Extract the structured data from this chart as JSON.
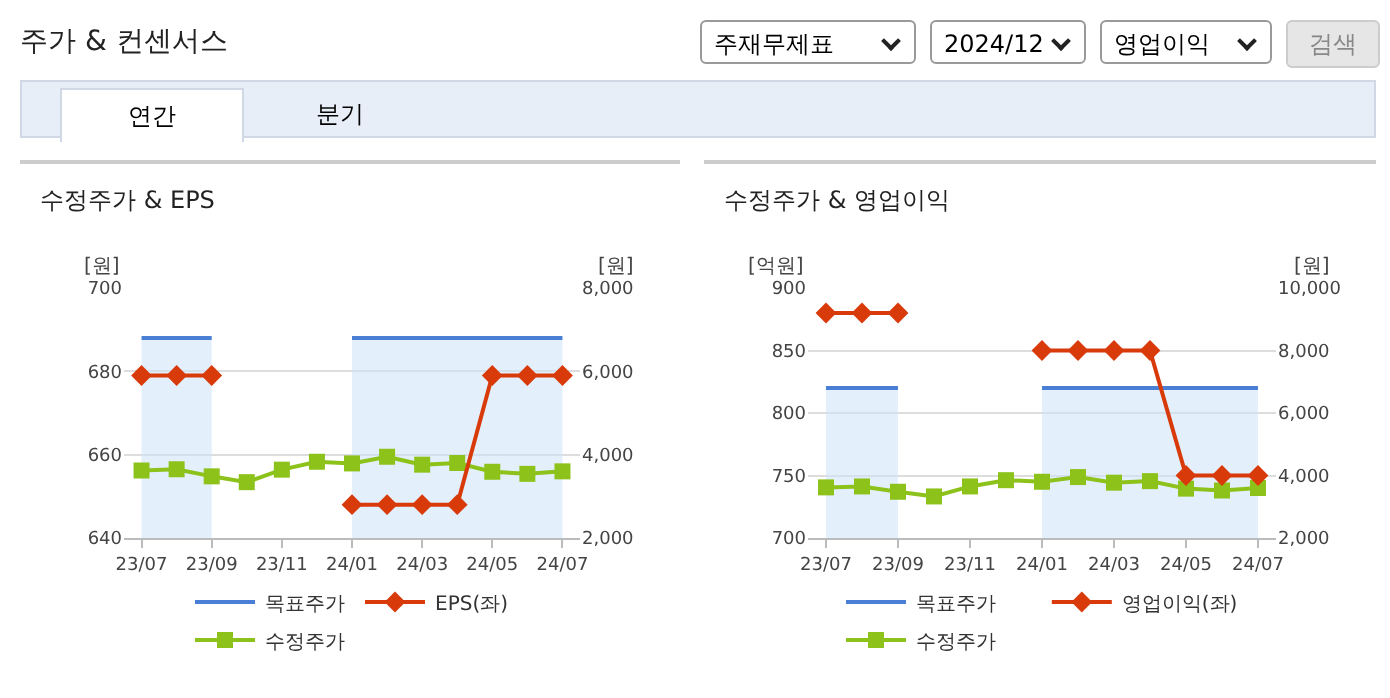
{
  "chart_data": [
    {
      "type": "line",
      "title": "수정주가 & EPS",
      "ylabel": "[원]",
      "y2label": "[원]",
      "annotations": [
        "주가 & 컨센서스",
        "주재무제표",
        "2024/12",
        "영업이익",
        "검색",
        "연간",
        "분기"
      ],
      "categories": [
        "23/07",
        null,
        "23/09",
        null,
        "23/11",
        null,
        "24/01",
        null,
        "24/03",
        null,
        "24/05",
        null,
        "24/07"
      ],
      "series": [
        {
          "name": "목표주가",
          "type": "area",
          "axis": "y2",
          "color": "#4a7fd6",
          "marker": "none",
          "values": [
            6800,
            6800,
            6800,
            null,
            null,
            null,
            6800,
            6800,
            6800,
            6800,
            6800,
            6800,
            6800
          ]
        },
        {
          "name": "EPS(좌)",
          "type": "line",
          "color": "#d83a0a",
          "marker": "diamond",
          "values": [
            679,
            679,
            679,
            null,
            null,
            null,
            648,
            648,
            648,
            648,
            679,
            679,
            679
          ]
        },
        {
          "name": "수정주가",
          "type": "line",
          "axis": "y2",
          "color": "#8cc21a",
          "marker": "square",
          "values": [
            3620,
            3650,
            3480,
            3340,
            3640,
            3830,
            3790,
            3950,
            3760,
            3800,
            3590,
            3540,
            3600
          ]
        }
      ],
      "ylim": [
        640,
        700
      ],
      "yticks": [
        640,
        660,
        680,
        700
      ],
      "y2lim": [
        2000,
        8000
      ],
      "y2ticks": [
        {
          "value": 2000,
          "label": "2,000"
        },
        {
          "value": 4000,
          "label": "4,000"
        },
        {
          "value": 6000,
          "label": "6,000"
        },
        {
          "value": 8000,
          "label": "8,000"
        }
      ],
      "grid": "y",
      "legend": "bottom"
    },
    {
      "type": "line",
      "title": "수정주가 & 영업이익",
      "ylabel": "[억원]",
      "y2label": "[원]",
      "categories": [
        "23/07",
        null,
        "23/09",
        null,
        "23/11",
        null,
        "24/01",
        null,
        "24/03",
        null,
        "24/05",
        null,
        "24/07"
      ],
      "series": [
        {
          "name": "목표주가",
          "type": "area",
          "axis": "y2",
          "color": "#4a7fd6",
          "marker": "none",
          "values": [
            6800,
            6800,
            6800,
            null,
            null,
            null,
            6800,
            6800,
            6800,
            6800,
            6800,
            6800,
            6800
          ]
        },
        {
          "name": "영업이익(좌)",
          "type": "line",
          "color": "#d83a0a",
          "marker": "diamond",
          "values": [
            880,
            880,
            880,
            null,
            null,
            null,
            850,
            850,
            850,
            850,
            750,
            750,
            750
          ]
        },
        {
          "name": "수정주가",
          "type": "line",
          "axis": "y2",
          "color": "#8cc21a",
          "marker": "square",
          "values": [
            3620,
            3650,
            3480,
            3330,
            3650,
            3850,
            3800,
            3950,
            3770,
            3820,
            3580,
            3520,
            3600
          ]
        }
      ],
      "ylim": [
        700,
        900
      ],
      "yticks": [
        700,
        750,
        800,
        850,
        900
      ],
      "y2lim": [
        2000,
        10000
      ],
      "y2ticks": [
        {
          "value": 2000,
          "label": "2,000"
        },
        {
          "value": 4000,
          "label": "4,000"
        },
        {
          "value": 6000,
          "label": "6,000"
        },
        {
          "value": 8000,
          "label": "8,000"
        },
        {
          "value": 10000,
          "label": "10,000"
        }
      ],
      "grid": "y",
      "legend": "bottom"
    }
  ]
}
